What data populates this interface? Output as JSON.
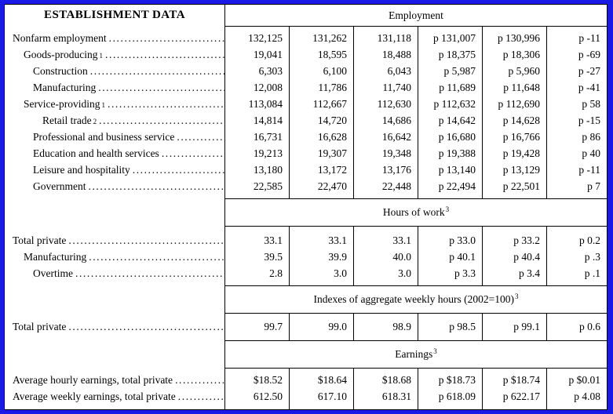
{
  "header": {
    "left_title": "ESTABLISHMENT DATA",
    "right_title": "Employment"
  },
  "colors": {
    "frame_blue": "#1a1ae6",
    "grid_black": "#000000",
    "background": "#ffffff",
    "text": "#000000"
  },
  "sections": [
    {
      "band": null,
      "rows": [
        {
          "label": "Nonfarm employment",
          "sup": "",
          "indent": 0,
          "values": [
            "132,125",
            "131,262",
            "131,118",
            "p 131,007",
            "p 130,996",
            "p -11"
          ]
        },
        {
          "label": "Goods-producing",
          "sup": "1",
          "indent": 1,
          "values": [
            "19,041",
            "18,595",
            "18,488",
            "p 18,375",
            "p 18,306",
            "p -69"
          ]
        },
        {
          "label": "Construction",
          "sup": "",
          "indent": 2,
          "values": [
            "6,303",
            "6,100",
            "6,043",
            "p 5,987",
            "p 5,960",
            "p -27"
          ]
        },
        {
          "label": "Manufacturing",
          "sup": "",
          "indent": 2,
          "values": [
            "12,008",
            "11,786",
            "11,740",
            "p 11,689",
            "p 11,648",
            "p -41"
          ]
        },
        {
          "label": "Service-providing",
          "sup": "1",
          "indent": 1,
          "values": [
            "113,084",
            "112,667",
            "112,630",
            "p 112,632",
            "p 112,690",
            "p 58"
          ]
        },
        {
          "label": "Retail trade",
          "sup": "2",
          "indent": 3,
          "values": [
            "14,814",
            "14,720",
            "14,686",
            "p 14,642",
            "p 14,628",
            "p -15"
          ]
        },
        {
          "label": "Professional and business service",
          "sup": "",
          "indent": 2,
          "values": [
            "16,731",
            "16,628",
            "16,642",
            "p 16,680",
            "p 16,766",
            "p 86"
          ]
        },
        {
          "label": "Education and health services",
          "sup": "",
          "indent": 2,
          "values": [
            "19,213",
            "19,307",
            "19,348",
            "p 19,388",
            "p 19,428",
            "p 40"
          ]
        },
        {
          "label": "Leisure and hospitality",
          "sup": "",
          "indent": 2,
          "values": [
            "13,180",
            "13,172",
            "13,176",
            "p 13,140",
            "p 13,129",
            "p -11"
          ]
        },
        {
          "label": "Government",
          "sup": "",
          "indent": 2,
          "values": [
            "22,585",
            "22,470",
            "22,448",
            "p 22,494",
            "p 22,501",
            "p 7"
          ]
        }
      ]
    },
    {
      "band": {
        "text": "Hours of work",
        "sup": "3"
      },
      "rows": [
        {
          "label": "Total private",
          "sup": "",
          "indent": 0,
          "values": [
            "33.1",
            "33.1",
            "33.1",
            "p 33.0",
            "p 33.2",
            "p 0.2"
          ]
        },
        {
          "label": "Manufacturing",
          "sup": "",
          "indent": 1,
          "values": [
            "39.5",
            "39.9",
            "40.0",
            "p 40.1",
            "p 40.4",
            "p .3"
          ]
        },
        {
          "label": "Overtime",
          "sup": "",
          "indent": 2,
          "values": [
            "2.8",
            "3.0",
            "3.0",
            "p 3.3",
            "p 3.4",
            "p .1"
          ]
        }
      ]
    },
    {
      "band": {
        "text": "Indexes of aggregate weekly hours (2002=100)",
        "sup": "3"
      },
      "rows": [
        {
          "label": "Total private",
          "sup": "",
          "indent": 0,
          "values": [
            "99.7",
            "99.0",
            "98.9",
            "p 98.5",
            "p 99.1",
            "p 0.6"
          ]
        }
      ]
    },
    {
      "band": {
        "text": "Earnings",
        "sup": "3"
      },
      "rows": [
        {
          "label": "Average hourly earnings, total private",
          "sup": "",
          "indent": 0,
          "values": [
            "$18.52",
            "$18.64",
            "$18.68",
            "p $18.73",
            "p $18.74",
            "p $0.01"
          ]
        },
        {
          "label": "Average weekly earnings, total private",
          "sup": "",
          "indent": 0,
          "values": [
            "612.50",
            "617.10",
            "618.31",
            "p 618.09",
            "p 622.17",
            "p 4.08"
          ]
        }
      ]
    }
  ]
}
